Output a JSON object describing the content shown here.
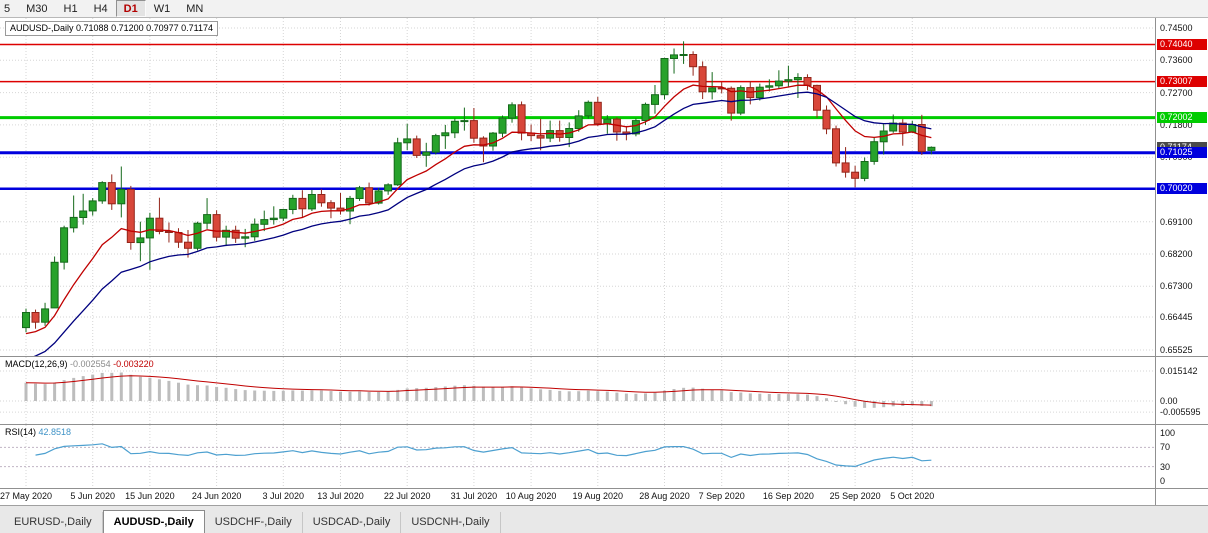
{
  "toolbar": {
    "periods": [
      {
        "label": "5"
      },
      {
        "label": "M30"
      },
      {
        "label": "H1"
      },
      {
        "label": "H4"
      },
      {
        "label": "D1"
      },
      {
        "label": "W1"
      },
      {
        "label": "MN"
      }
    ],
    "active_period": "D1"
  },
  "chart": {
    "title": "AUDUSD-,Daily",
    "ohlc": "0.71088 0.71200 0.70977 0.71174"
  },
  "chart_data": {
    "type": "candlestick",
    "symbol": "AUDUSD-",
    "timeframe": "Daily",
    "current_bar": {
      "open": 0.71088,
      "high": 0.712,
      "low": 0.70977,
      "close": 0.71174
    },
    "colors": {
      "bull": "#27a22b",
      "bull_border": "#14691a",
      "bear": "#d8473a",
      "bear_border": "#93251a",
      "grid": "#d6d6d6"
    },
    "y_ticks": [
      {
        "label": "0.74500",
        "price": 0.745
      },
      {
        "label": "0.73600",
        "price": 0.736
      },
      {
        "label": "0.72700",
        "price": 0.727
      },
      {
        "label": "0.71800",
        "price": 0.718
      },
      {
        "label": "0.70900",
        "price": 0.709
      },
      {
        "label": "0.70000",
        "price": 0.7
      },
      {
        "label": "0.69100",
        "price": 0.691
      },
      {
        "label": "0.68200",
        "price": 0.682
      },
      {
        "label": "0.67300",
        "price": 0.673
      },
      {
        "label": "0.66445",
        "price": 0.66445
      },
      {
        "label": "0.65525",
        "price": 0.65525
      }
    ],
    "x_ticks": [
      {
        "label": "27 May 2020",
        "index": 0
      },
      {
        "label": "5 Jun 2020",
        "index": 7
      },
      {
        "label": "15 Jun 2020",
        "index": 13
      },
      {
        "label": "24 Jun 2020",
        "index": 20
      },
      {
        "label": "3 Jul 2020",
        "index": 27
      },
      {
        "label": "13 Jul 2020",
        "index": 33
      },
      {
        "label": "22 Jul 2020",
        "index": 40
      },
      {
        "label": "31 Jul 2020",
        "index": 47
      },
      {
        "label": "10 Aug 2020",
        "index": 53
      },
      {
        "label": "19 Aug 2020",
        "index": 60
      },
      {
        "label": "28 Aug 2020",
        "index": 67
      },
      {
        "label": "7 Sep 2020",
        "index": 73
      },
      {
        "label": "16 Sep 2020",
        "index": 80
      },
      {
        "label": "25 Sep 2020",
        "index": 87
      },
      {
        "label": "5 Oct 2020",
        "index": 93
      }
    ],
    "hlines": [
      {
        "price": 0.7404,
        "label": "0.74040",
        "color": "#dd0000",
        "width": 1.5
      },
      {
        "price": 0.73007,
        "label": "0.73007",
        "color": "#dd0000",
        "width": 1.5
      },
      {
        "price": 0.72002,
        "label": "0.72002",
        "color": "#00cc00",
        "width": 3
      },
      {
        "price": 0.71025,
        "label": "0.71025",
        "color": "#0000dd",
        "width": 3
      },
      {
        "price": 0.7002,
        "label": "0.70020",
        "color": "#0000dd",
        "width": 2.5
      }
    ],
    "current_price": {
      "label": "0.71174",
      "price": 0.71174,
      "color": "#4a4a4a"
    },
    "moving_averages": [
      {
        "period": 10,
        "color": "#c00000"
      },
      {
        "period": 20,
        "color": "#00007f"
      }
    ],
    "candles": [
      [
        0.6615,
        0.6668,
        0.6602,
        0.6657
      ],
      [
        0.6657,
        0.6665,
        0.6612,
        0.663
      ],
      [
        0.663,
        0.6684,
        0.662,
        0.6667
      ],
      [
        0.667,
        0.6813,
        0.667,
        0.6797
      ],
      [
        0.6797,
        0.6899,
        0.6777,
        0.6893
      ],
      [
        0.6893,
        0.6983,
        0.688,
        0.6922
      ],
      [
        0.6922,
        0.6988,
        0.6902,
        0.694
      ],
      [
        0.694,
        0.6976,
        0.6927,
        0.6968
      ],
      [
        0.6968,
        0.7023,
        0.696,
        0.7019
      ],
      [
        0.7019,
        0.7042,
        0.6943,
        0.696
      ],
      [
        0.696,
        0.7064,
        0.6922,
        0.7
      ],
      [
        0.7,
        0.701,
        0.6832,
        0.6852
      ],
      [
        0.6852,
        0.691,
        0.68,
        0.6865
      ],
      [
        0.6865,
        0.6935,
        0.6776,
        0.692
      ],
      [
        0.692,
        0.6977,
        0.6875,
        0.6883
      ],
      [
        0.6883,
        0.6908,
        0.6852,
        0.688
      ],
      [
        0.688,
        0.6892,
        0.6837,
        0.6853
      ],
      [
        0.6853,
        0.6887,
        0.681,
        0.6836
      ],
      [
        0.6836,
        0.691,
        0.683,
        0.6906
      ],
      [
        0.6906,
        0.6976,
        0.689,
        0.693
      ],
      [
        0.693,
        0.6942,
        0.6855,
        0.6867
      ],
      [
        0.6867,
        0.6899,
        0.6842,
        0.6886
      ],
      [
        0.6886,
        0.6899,
        0.6851,
        0.6864
      ],
      [
        0.6864,
        0.689,
        0.6839,
        0.6868
      ],
      [
        0.6868,
        0.6919,
        0.6857,
        0.6903
      ],
      [
        0.6903,
        0.6941,
        0.6884,
        0.6916
      ],
      [
        0.6916,
        0.6953,
        0.6902,
        0.692
      ],
      [
        0.692,
        0.6946,
        0.6912,
        0.6944
      ],
      [
        0.6944,
        0.6985,
        0.6931,
        0.6975
      ],
      [
        0.6975,
        0.6998,
        0.6922,
        0.6946
      ],
      [
        0.6946,
        0.6999,
        0.694,
        0.6986
      ],
      [
        0.6986,
        0.7001,
        0.6952,
        0.6963
      ],
      [
        0.6963,
        0.697,
        0.692,
        0.6948
      ],
      [
        0.6948,
        0.699,
        0.693,
        0.694
      ],
      [
        0.694,
        0.6982,
        0.6903,
        0.6975
      ],
      [
        0.6975,
        0.701,
        0.6968,
        0.7005
      ],
      [
        0.7005,
        0.7019,
        0.6955,
        0.6962
      ],
      [
        0.6962,
        0.7004,
        0.6958,
        0.6996
      ],
      [
        0.6996,
        0.7017,
        0.6985,
        0.7013
      ],
      [
        0.7013,
        0.7144,
        0.701,
        0.713
      ],
      [
        0.713,
        0.7183,
        0.711,
        0.7141
      ],
      [
        0.7141,
        0.715,
        0.7088,
        0.7095
      ],
      [
        0.7095,
        0.713,
        0.7063,
        0.7104
      ],
      [
        0.7104,
        0.7155,
        0.7097,
        0.715
      ],
      [
        0.715,
        0.718,
        0.7113,
        0.7158
      ],
      [
        0.7158,
        0.7198,
        0.7143,
        0.719
      ],
      [
        0.719,
        0.7228,
        0.7164,
        0.7192
      ],
      [
        0.7192,
        0.7227,
        0.713,
        0.7143
      ],
      [
        0.7143,
        0.7148,
        0.7076,
        0.7121
      ],
      [
        0.7121,
        0.716,
        0.7108,
        0.7157
      ],
      [
        0.7157,
        0.7206,
        0.7146,
        0.7199
      ],
      [
        0.7199,
        0.7243,
        0.7186,
        0.7236
      ],
      [
        0.7236,
        0.7245,
        0.7137,
        0.7157
      ],
      [
        0.7157,
        0.7181,
        0.7135,
        0.715
      ],
      [
        0.715,
        0.7197,
        0.7109,
        0.7143
      ],
      [
        0.7143,
        0.7192,
        0.7132,
        0.7164
      ],
      [
        0.7164,
        0.7192,
        0.7133,
        0.7145
      ],
      [
        0.7145,
        0.7187,
        0.7118,
        0.717
      ],
      [
        0.717,
        0.7221,
        0.7161,
        0.7205
      ],
      [
        0.7205,
        0.7248,
        0.7197,
        0.7243
      ],
      [
        0.7243,
        0.7258,
        0.7177,
        0.7183
      ],
      [
        0.7183,
        0.7207,
        0.7155,
        0.7196
      ],
      [
        0.7196,
        0.7201,
        0.7136,
        0.716
      ],
      [
        0.716,
        0.7177,
        0.7137,
        0.7155
      ],
      [
        0.7155,
        0.7198,
        0.7148,
        0.7192
      ],
      [
        0.7192,
        0.7242,
        0.718,
        0.7237
      ],
      [
        0.7237,
        0.7291,
        0.7211,
        0.7264
      ],
      [
        0.7264,
        0.7367,
        0.7251,
        0.7365
      ],
      [
        0.7365,
        0.7393,
        0.7323,
        0.7375
      ],
      [
        0.7375,
        0.7413,
        0.735,
        0.7376
      ],
      [
        0.7376,
        0.7385,
        0.7317,
        0.7342
      ],
      [
        0.7342,
        0.7357,
        0.7252,
        0.7272
      ],
      [
        0.7272,
        0.7327,
        0.7251,
        0.7283
      ],
      [
        0.7283,
        0.73,
        0.7268,
        0.7282
      ],
      [
        0.7282,
        0.7287,
        0.7192,
        0.7213
      ],
      [
        0.7213,
        0.729,
        0.7207,
        0.7284
      ],
      [
        0.7284,
        0.7302,
        0.7237,
        0.7256
      ],
      [
        0.7256,
        0.7295,
        0.7248,
        0.7285
      ],
      [
        0.7285,
        0.7307,
        0.7273,
        0.7289
      ],
      [
        0.7289,
        0.7332,
        0.7281,
        0.7302
      ],
      [
        0.7302,
        0.7345,
        0.7285,
        0.7306
      ],
      [
        0.7306,
        0.7324,
        0.7255,
        0.7312
      ],
      [
        0.7312,
        0.7321,
        0.7277,
        0.729
      ],
      [
        0.729,
        0.7292,
        0.72,
        0.7221
      ],
      [
        0.7221,
        0.7234,
        0.7154,
        0.7169
      ],
      [
        0.7169,
        0.7178,
        0.7064,
        0.7074
      ],
      [
        0.7074,
        0.7118,
        0.7033,
        0.7048
      ],
      [
        0.7048,
        0.7066,
        0.7006,
        0.7031
      ],
      [
        0.7031,
        0.7089,
        0.7023,
        0.7078
      ],
      [
        0.7078,
        0.7146,
        0.7069,
        0.7133
      ],
      [
        0.7133,
        0.7185,
        0.7097,
        0.7163
      ],
      [
        0.7163,
        0.7209,
        0.7158,
        0.7185
      ],
      [
        0.7185,
        0.7196,
        0.7122,
        0.716
      ],
      [
        0.716,
        0.7191,
        0.7157,
        0.7181
      ],
      [
        0.7181,
        0.7208,
        0.7096,
        0.7106
      ],
      [
        0.71088,
        0.712,
        0.70977,
        0.71174
      ]
    ]
  },
  "macd": {
    "label": "MACD(12,26,9)",
    "value_main": "-0.002554",
    "value_signal": "-0.003220",
    "histogram_color": "#bdbdbd",
    "signal_color": "#c00000",
    "y_ticks": [
      {
        "label": "0.015142",
        "value": 0.015142
      },
      {
        "label": "0.00",
        "value": 0
      },
      {
        "label": "-0.005595",
        "value": -0.005595
      }
    ]
  },
  "rsi": {
    "label": "RSI(14)",
    "value": "42.8518",
    "period": 14,
    "levels": [
      70,
      30
    ],
    "line_color": "#4da0d0",
    "y_ticks": [
      {
        "label": "100",
        "value": 100
      },
      {
        "label": "70",
        "value": 70
      },
      {
        "label": "30",
        "value": 30
      },
      {
        "label": "0",
        "value": 0
      }
    ]
  },
  "tabs": {
    "items": [
      {
        "label": "EURUSD-,Daily"
      },
      {
        "label": "AUDUSD-,Daily",
        "active": true
      },
      {
        "label": "USDCHF-,Daily"
      },
      {
        "label": "USDCAD-,Daily"
      },
      {
        "label": "USDCNH-,Daily"
      }
    ]
  }
}
